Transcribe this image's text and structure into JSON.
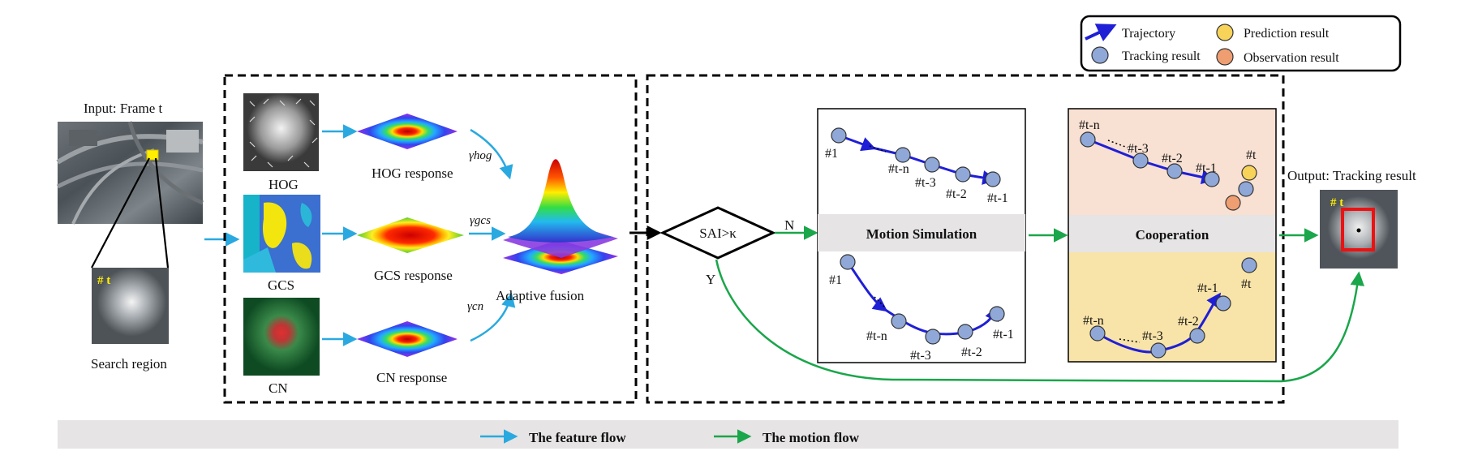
{
  "input": {
    "title": "Input: Frame t",
    "search_tag": "# t",
    "search_label": "Search region"
  },
  "features": {
    "hog": {
      "label": "HOG",
      "response": "HOG response",
      "weight": "γhog"
    },
    "gcs": {
      "label": "GCS",
      "response": "GCS response",
      "weight": "γgcs"
    },
    "cn": {
      "label": "CN",
      "response": "CN response",
      "weight": "γcn"
    },
    "fusion_label": "Adaptive fusion"
  },
  "decision": {
    "condition": "SAI>κ",
    "no": "N",
    "yes": "Y"
  },
  "motion_simulation": {
    "title": "Motion Simulation",
    "top_labels": [
      "#1",
      "#t-n",
      "#t-3",
      "#t-2",
      "#t-1"
    ],
    "bottom_labels": [
      "#1",
      "#t-n",
      "#t-3",
      "#t-2",
      "#t-1"
    ]
  },
  "cooperation": {
    "title": "Cooperation",
    "top_labels": [
      "#t-n",
      "#t-3",
      "#t-2",
      "#t-1",
      "#t"
    ],
    "bottom_labels": [
      "#t-n",
      "#t-3",
      "#t-2",
      "#t-1",
      "#t"
    ]
  },
  "output": {
    "title": "Output: Tracking result",
    "tag": "# t"
  },
  "legend": {
    "trajectory": "Trajectory",
    "tracking": "Tracking result",
    "prediction": "Prediction result",
    "observation": "Observation result"
  },
  "flow_legend": {
    "feature": "The feature flow",
    "motion": "The motion flow"
  },
  "colors": {
    "feature_flow": "#29a9e0",
    "motion_flow": "#1aa64a",
    "trajectory": "#1f1fd6",
    "tracking_dot": "#8fa8d8",
    "prediction_dot": "#f7d35a",
    "observation_dot": "#ef9e72",
    "cooperation_top_bg": "#f8e0d2",
    "cooperation_bottom_bg": "#f8e3a8",
    "band_bg": "#e6e4e4"
  }
}
